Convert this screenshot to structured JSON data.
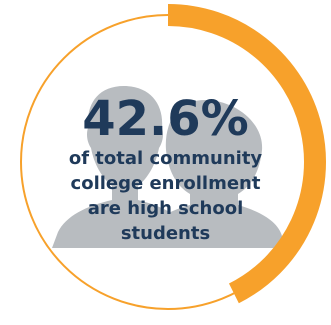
{
  "chart_data": {
    "type": "pie",
    "value_percent": 42.6,
    "value_label": "42.6%",
    "caption_lines": [
      "of total community",
      "college enrollment",
      "are high school",
      "students"
    ]
  },
  "colors": {
    "accent": "#f7a12b",
    "ring_track": "#f7a12b",
    "text": "#1f3a5a",
    "silhouette": "#b8bcc0",
    "background": "#ffffff"
  },
  "icons": {
    "silhouette": "people-silhouette-icon"
  }
}
